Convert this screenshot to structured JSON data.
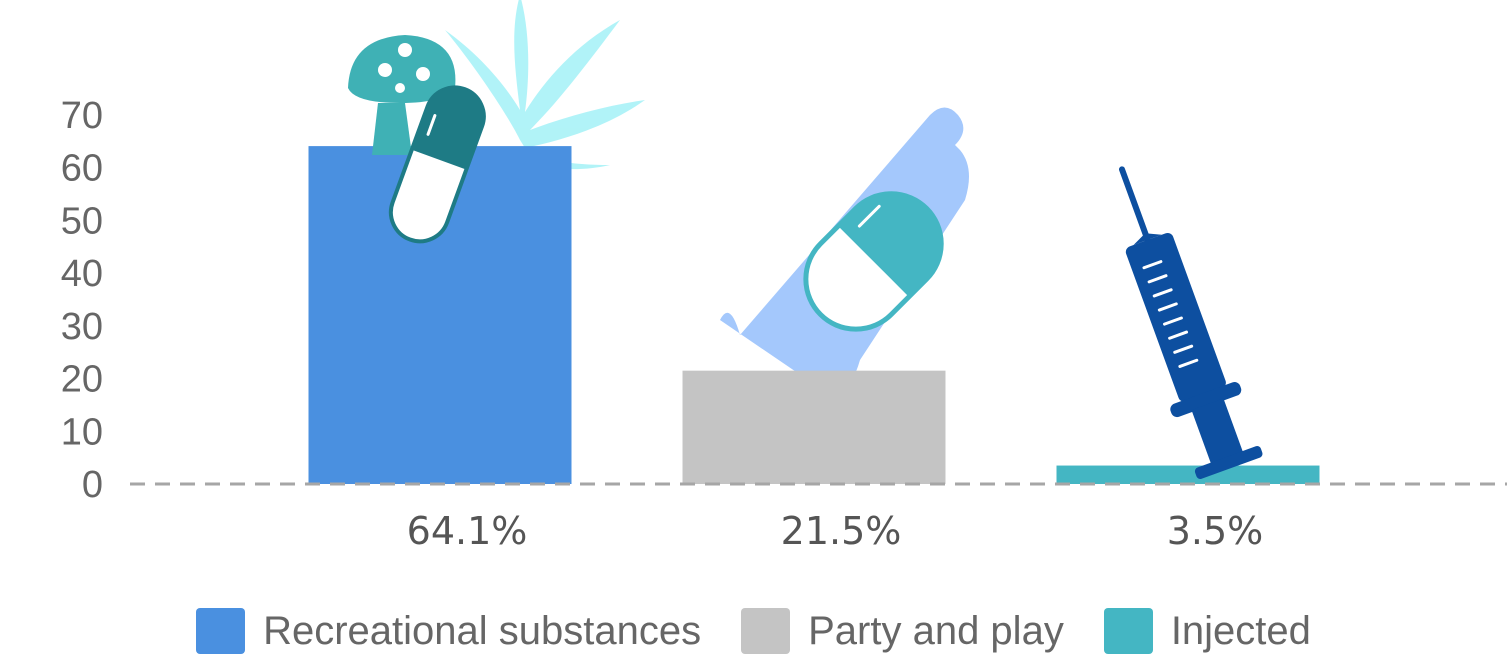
{
  "chart_data": {
    "type": "bar",
    "categories": [
      "Recreational substances",
      "Party and play",
      "Injected"
    ],
    "values": [
      64.1,
      21.5,
      3.5
    ],
    "data_labels": [
      "64.1%",
      "21.5%",
      "3.5%"
    ],
    "colors": [
      "#4a90e0",
      "#c4c4c4",
      "#44b6c3"
    ],
    "y_ticks": [
      "0",
      "10",
      "20",
      "30",
      "40",
      "50",
      "60",
      "70"
    ],
    "ylim": [
      0,
      70
    ],
    "grid": false,
    "legend_position": "bottom",
    "icons": [
      "mushroom-icon",
      "cannabis-leaf-icon",
      "capsule-icon",
      "condom-icon",
      "capsule-icon",
      "syringe-icon"
    ]
  }
}
